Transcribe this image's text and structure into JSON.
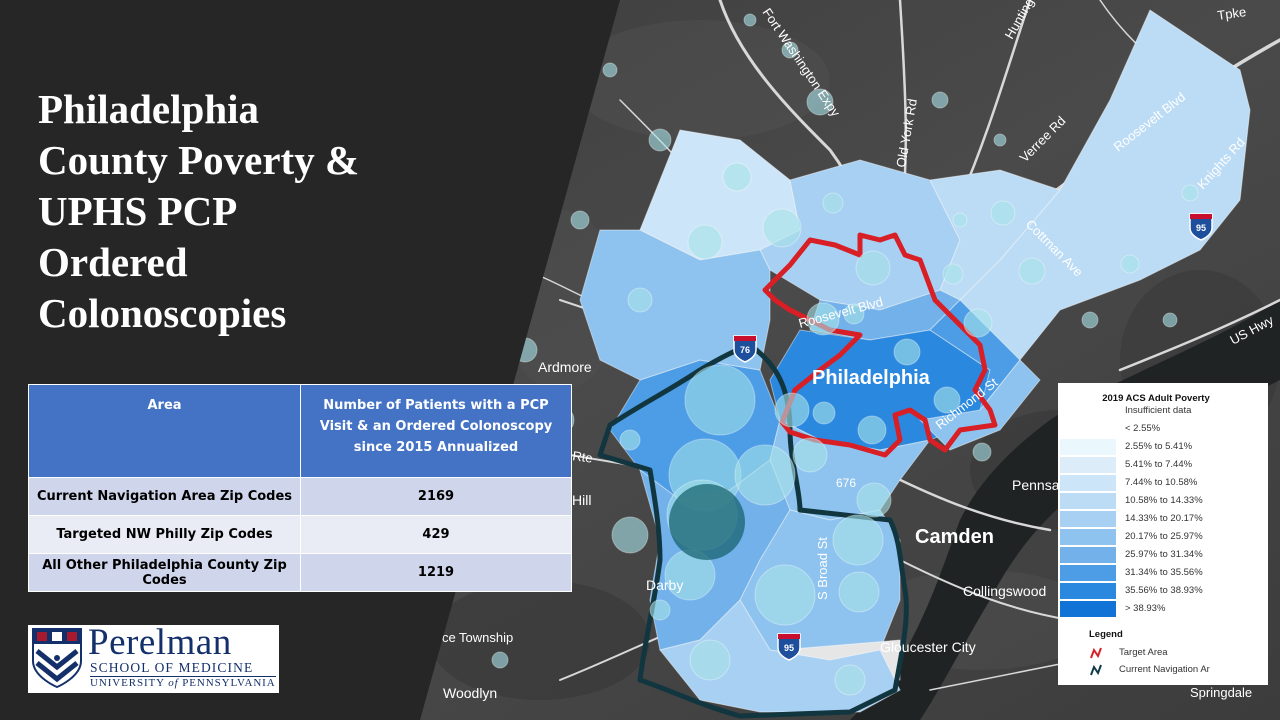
{
  "slide": {
    "title_lines": [
      "Philadelphia",
      "County Poverty &",
      "UPHS PCP",
      "Ordered",
      "Colonoscopies"
    ]
  },
  "table": {
    "headers": [
      "Area",
      "Number of Patients with a PCP Visit & an Ordered Colonoscopy since 2015 Annualized"
    ],
    "rows": [
      {
        "area": "Current Navigation Area Zip Codes",
        "value": "2169"
      },
      {
        "area": "Targeted NW Philly Zip Codes",
        "value": "429"
      },
      {
        "area": "All Other Philadelphia County Zip Codes",
        "value": "1219"
      }
    ],
    "colors": {
      "header": "#4472c4",
      "row_band_dark": "#cfd5ea",
      "row_band_light": "#e9ebf5"
    }
  },
  "logo": {
    "name": "Perelman",
    "school": "SCHOOL OF MEDICINE",
    "university_prefix": "UNIVERSITY ",
    "university_of": "of",
    "university_suffix": " PENNSYLVANIA",
    "colors": {
      "navy": "#14306b",
      "red": "#a6192e"
    }
  },
  "legend": {
    "title": "2019 ACS Adult Poverty",
    "bins": [
      {
        "label": "Insufficient data",
        "color": "#ffffff"
      },
      {
        "label": "< 2.55%",
        "color": "#ffffff"
      },
      {
        "label": "2.55% to 5.41%",
        "color": "#eaf8fd"
      },
      {
        "label": "5.41% to 7.44%",
        "color": "#dcedf9"
      },
      {
        "label": "7.44% to 10.58%",
        "color": "#cde5f8"
      },
      {
        "label": "10.58% to 14.33%",
        "color": "#bcdcf5"
      },
      {
        "label": "14.33% to 20.17%",
        "color": "#a8d0f2"
      },
      {
        "label": "20.17% to 25.97%",
        "color": "#8ec3ef"
      },
      {
        "label": "25.97% to 31.34%",
        "color": "#72b1ea"
      },
      {
        "label": "31.34% to 35.56%",
        "color": "#4d9de6"
      },
      {
        "label": "35.56% to 38.93%",
        "color": "#2b88df"
      },
      {
        "label": "> 38.93%",
        "color": "#1273d6"
      }
    ],
    "legend_heading": "Legend",
    "entries": [
      {
        "label": "Target Area",
        "color": "#d81f26"
      },
      {
        "label": "Current Navigation Ar",
        "color": "#0f3a4a"
      }
    ]
  },
  "map": {
    "city_label": "Philadelphia",
    "places": [
      "Ardmore",
      "Camden",
      "Pennsauken",
      "Collingswood",
      "Gloucester City",
      "Nether Providence Township",
      "Woodlyn",
      "Springdale",
      "Darby",
      "Hill"
    ],
    "roads": [
      "Fort Washington Expy",
      "Old York Rd",
      "Huntingdon Pike",
      "Verree Rd",
      "Roosevelt Blvd",
      "Knights Rd",
      "Cottman Ave",
      "Richmond St",
      "S Broad St",
      "Rte",
      "US Hwy",
      "Tpke"
    ],
    "shields": [
      "95",
      "95",
      "76",
      "676"
    ],
    "colors": {
      "target_outline": "#d81f26",
      "navigation_outline": "#12363f",
      "bubble": "#a6e3e8"
    }
  }
}
